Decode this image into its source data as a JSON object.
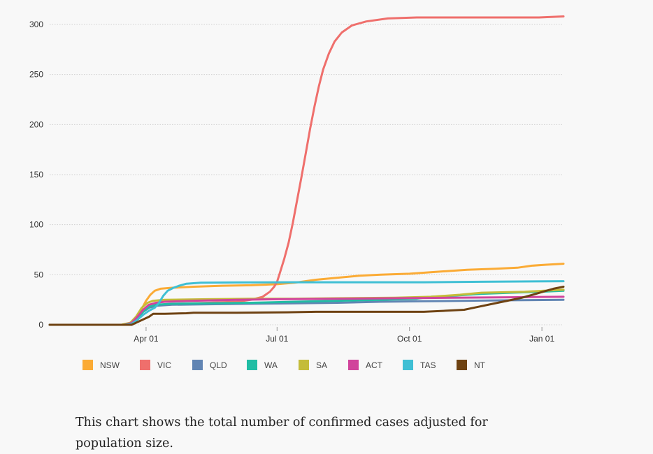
{
  "chart_data": {
    "type": "line",
    "title": "",
    "xlabel": "",
    "ylabel": "",
    "x_unit": "days since 2020-01-25",
    "xlim": [
      0,
      357
    ],
    "ylim": [
      0,
      300
    ],
    "grid": true,
    "legend_position": "bottom",
    "y_ticks": [
      0,
      50,
      100,
      150,
      200,
      250,
      300
    ],
    "x_ticks": [
      {
        "label": "Apr 01",
        "day": 67
      },
      {
        "label": "Jul 01",
        "day": 158
      },
      {
        "label": "Oct 01",
        "day": 250
      },
      {
        "label": "Jan 01",
        "day": 342
      }
    ],
    "series": [
      {
        "name": "NSW",
        "color": "#fbab35",
        "points": [
          [
            0,
            0
          ],
          [
            50,
            0
          ],
          [
            55,
            1
          ],
          [
            58,
            3
          ],
          [
            61,
            8
          ],
          [
            64,
            16
          ],
          [
            67,
            24
          ],
          [
            70,
            30
          ],
          [
            73,
            34
          ],
          [
            77,
            36
          ],
          [
            85,
            37
          ],
          [
            100,
            38
          ],
          [
            120,
            39
          ],
          [
            140,
            39.5
          ],
          [
            158,
            40.5
          ],
          [
            170,
            42
          ],
          [
            185,
            45
          ],
          [
            200,
            47
          ],
          [
            215,
            49
          ],
          [
            230,
            50
          ],
          [
            250,
            51
          ],
          [
            270,
            53
          ],
          [
            290,
            55
          ],
          [
            310,
            56
          ],
          [
            325,
            57
          ],
          [
            335,
            59
          ],
          [
            345,
            60
          ],
          [
            357,
            61
          ]
        ]
      },
      {
        "name": "VIC",
        "color": "#ef6f6c",
        "points": [
          [
            0,
            0
          ],
          [
            52,
            0
          ],
          [
            58,
            2
          ],
          [
            62,
            8
          ],
          [
            66,
            15
          ],
          [
            70,
            18
          ],
          [
            75,
            20
          ],
          [
            90,
            21
          ],
          [
            110,
            22
          ],
          [
            130,
            23
          ],
          [
            140,
            25
          ],
          [
            148,
            28
          ],
          [
            153,
            33
          ],
          [
            156,
            38
          ],
          [
            158,
            43
          ],
          [
            160,
            52
          ],
          [
            163,
            66
          ],
          [
            166,
            82
          ],
          [
            169,
            102
          ],
          [
            172,
            125
          ],
          [
            175,
            148
          ],
          [
            178,
            172
          ],
          [
            181,
            196
          ],
          [
            184,
            218
          ],
          [
            187,
            238
          ],
          [
            190,
            255
          ],
          [
            194,
            271
          ],
          [
            198,
            283
          ],
          [
            203,
            292
          ],
          [
            210,
            299
          ],
          [
            220,
            303
          ],
          [
            235,
            306
          ],
          [
            255,
            307
          ],
          [
            300,
            307
          ],
          [
            340,
            307
          ],
          [
            357,
            308
          ]
        ]
      },
      {
        "name": "QLD",
        "color": "#6185b3",
        "points": [
          [
            0,
            0
          ],
          [
            52,
            0
          ],
          [
            57,
            2
          ],
          [
            61,
            7
          ],
          [
            65,
            13
          ],
          [
            69,
            17
          ],
          [
            74,
            19
          ],
          [
            85,
            20
          ],
          [
            110,
            20.5
          ],
          [
            140,
            21
          ],
          [
            170,
            21.5
          ],
          [
            200,
            22
          ],
          [
            230,
            23
          ],
          [
            260,
            23.5
          ],
          [
            290,
            24
          ],
          [
            320,
            24.5
          ],
          [
            357,
            25
          ]
        ]
      },
      {
        "name": "WA",
        "color": "#20bda4",
        "points": [
          [
            0,
            0
          ],
          [
            52,
            0
          ],
          [
            57,
            2
          ],
          [
            61,
            7
          ],
          [
            65,
            13
          ],
          [
            69,
            18
          ],
          [
            74,
            20
          ],
          [
            85,
            21
          ],
          [
            110,
            21.5
          ],
          [
            140,
            22
          ],
          [
            170,
            23
          ],
          [
            200,
            24
          ],
          [
            230,
            25
          ],
          [
            255,
            26
          ],
          [
            265,
            28
          ],
          [
            280,
            29
          ],
          [
            300,
            31
          ],
          [
            320,
            32
          ],
          [
            340,
            33
          ],
          [
            357,
            34
          ]
        ]
      },
      {
        "name": "SA",
        "color": "#c4bc3a",
        "points": [
          [
            0,
            0
          ],
          [
            50,
            0
          ],
          [
            56,
            2
          ],
          [
            60,
            8
          ],
          [
            64,
            17
          ],
          [
            68,
            22
          ],
          [
            72,
            24
          ],
          [
            80,
            25
          ],
          [
            110,
            25.5
          ],
          [
            140,
            26
          ],
          [
            170,
            26
          ],
          [
            200,
            26.5
          ],
          [
            240,
            27
          ],
          [
            265,
            28
          ],
          [
            285,
            30
          ],
          [
            300,
            32
          ],
          [
            330,
            33
          ],
          [
            357,
            35
          ]
        ]
      },
      {
        "name": "ACT",
        "color": "#d1449b",
        "points": [
          [
            0,
            0
          ],
          [
            52,
            0
          ],
          [
            57,
            2
          ],
          [
            61,
            8
          ],
          [
            65,
            15
          ],
          [
            69,
            20
          ],
          [
            74,
            22
          ],
          [
            80,
            23
          ],
          [
            100,
            24
          ],
          [
            130,
            25
          ],
          [
            160,
            25.5
          ],
          [
            200,
            26
          ],
          [
            240,
            26.5
          ],
          [
            280,
            27
          ],
          [
            320,
            27.5
          ],
          [
            357,
            28
          ]
        ]
      },
      {
        "name": "TAS",
        "color": "#3fbfd4",
        "points": [
          [
            0,
            0
          ],
          [
            52,
            0
          ],
          [
            57,
            1
          ],
          [
            61,
            5
          ],
          [
            65,
            10
          ],
          [
            69,
            14
          ],
          [
            73,
            17
          ],
          [
            76,
            22
          ],
          [
            79,
            29
          ],
          [
            82,
            34
          ],
          [
            86,
            37
          ],
          [
            90,
            39
          ],
          [
            95,
            41
          ],
          [
            105,
            42
          ],
          [
            130,
            42.3
          ],
          [
            170,
            42.5
          ],
          [
            220,
            42.5
          ],
          [
            260,
            42.5
          ],
          [
            300,
            43
          ],
          [
            357,
            43.5
          ]
        ]
      },
      {
        "name": "NT",
        "color": "#6e4212",
        "points": [
          [
            0,
            0
          ],
          [
            53,
            0
          ],
          [
            57,
            0
          ],
          [
            60,
            2
          ],
          [
            63,
            4
          ],
          [
            66,
            6
          ],
          [
            69,
            8
          ],
          [
            72,
            11
          ],
          [
            80,
            11
          ],
          [
            95,
            11.5
          ],
          [
            100,
            12
          ],
          [
            130,
            12
          ],
          [
            150,
            12.3
          ],
          [
            165,
            12.5
          ],
          [
            185,
            13
          ],
          [
            215,
            13
          ],
          [
            260,
            13
          ],
          [
            275,
            14
          ],
          [
            288,
            15
          ],
          [
            298,
            18
          ],
          [
            308,
            21
          ],
          [
            318,
            24
          ],
          [
            328,
            27
          ],
          [
            338,
            31
          ],
          [
            345,
            34
          ],
          [
            350,
            36
          ],
          [
            357,
            38
          ]
        ]
      }
    ]
  },
  "legend": [
    {
      "label": "NSW",
      "color": "#fbab35"
    },
    {
      "label": "VIC",
      "color": "#ef6f6c"
    },
    {
      "label": "QLD",
      "color": "#6185b3"
    },
    {
      "label": "WA",
      "color": "#20bda4"
    },
    {
      "label": "SA",
      "color": "#c4bc3a"
    },
    {
      "label": "ACT",
      "color": "#d1449b"
    },
    {
      "label": "TAS",
      "color": "#3fbfd4"
    },
    {
      "label": "NT",
      "color": "#6e4212"
    }
  ],
  "caption": "This chart shows the total number of confirmed cases adjusted for population size."
}
